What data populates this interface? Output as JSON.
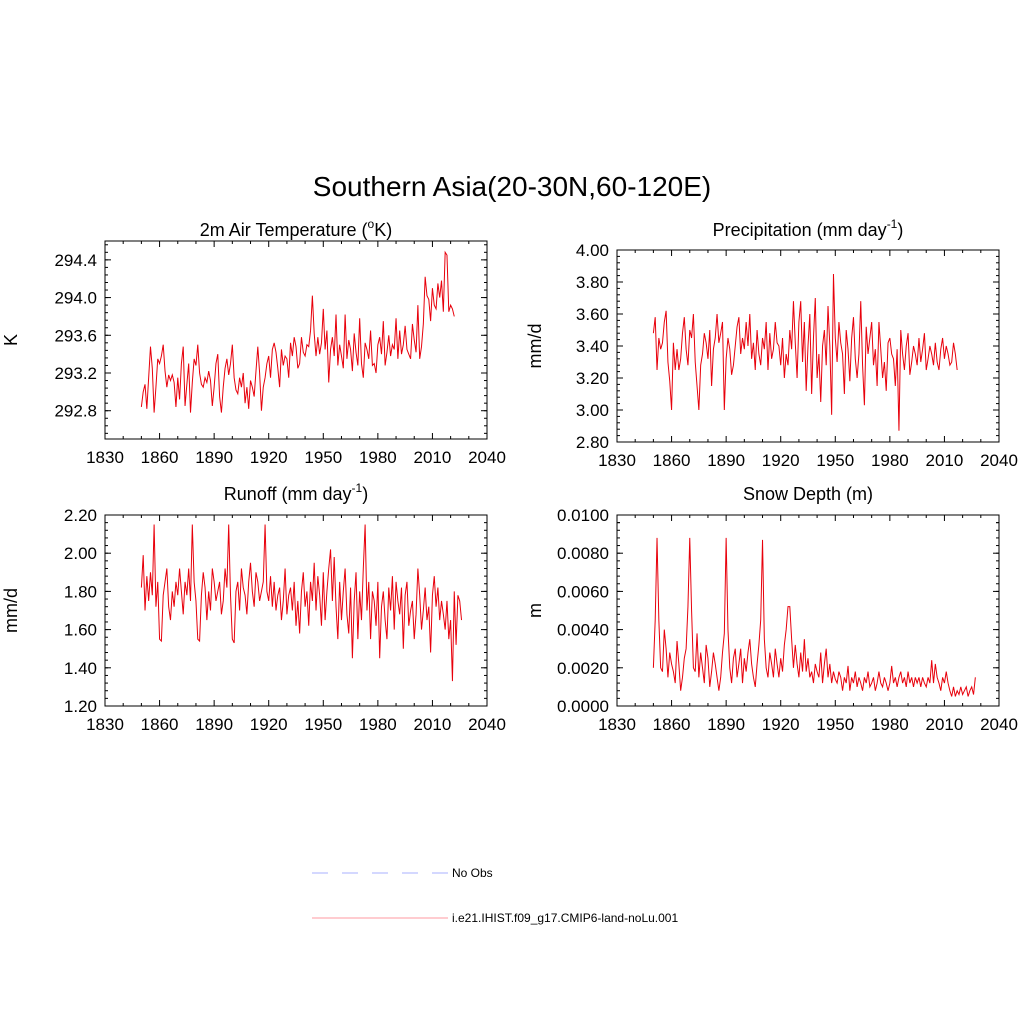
{
  "figure": {
    "title": "Southern Asia(20-30N,60-120E)"
  },
  "colors": {
    "series": "#e8000b",
    "obs": "#aab0ff",
    "axis": "#000000"
  },
  "legend": {
    "items": [
      {
        "label": "No Obs",
        "style": "dashed",
        "color": "#aab0ff"
      },
      {
        "label": "i.e21.IHIST.f09_g17.CMIP6-land-noLu.001",
        "style": "solid",
        "color": "#ff9aa0"
      }
    ]
  },
  "chart_data": [
    {
      "type": "line",
      "title": "2m Air Temperature (",
      "title_sup": "o",
      "title_post": "K)",
      "xlabel": "",
      "ylabel": "K",
      "xlim": [
        1830,
        2040
      ],
      "ylim": [
        292.5,
        294.6
      ],
      "x_ticks": [
        1830,
        1860,
        1890,
        1920,
        1950,
        1980,
        2010,
        2040
      ],
      "y_ticks": [
        292.8,
        293.2,
        293.6,
        294.0,
        294.4
      ],
      "y_tick_labels": [
        "292.8",
        "293.2",
        "293.6",
        "294.0",
        "294.4"
      ],
      "grid": false,
      "series": [
        {
          "x_start": 1850,
          "x_step": 1,
          "values": [
            292.84,
            293.0,
            293.08,
            292.82,
            293.15,
            293.48,
            293.25,
            292.78,
            293.05,
            293.35,
            293.3,
            293.38,
            293.5,
            293.22,
            293.05,
            293.18,
            293.12,
            293.18,
            293.1,
            292.84,
            293.15,
            292.92,
            293.3,
            293.48,
            292.85,
            293.08,
            293.3,
            292.78,
            293.1,
            293.35,
            293.28,
            293.5,
            293.2,
            293.08,
            293.05,
            293.15,
            293.1,
            293.22,
            293.12,
            292.85,
            293.05,
            293.3,
            293.4,
            292.95,
            292.78,
            293.05,
            293.25,
            293.35,
            293.18,
            293.3,
            293.5,
            293.15,
            293.02,
            292.98,
            293.15,
            293.05,
            293.2,
            292.88,
            293.05,
            292.82,
            293.12,
            293.05,
            292.95,
            293.22,
            293.48,
            293.2,
            292.8,
            293.05,
            293.15,
            293.3,
            293.38,
            293.15,
            293.45,
            293.52,
            293.42,
            293.25,
            293.05,
            293.45,
            293.28,
            293.38,
            293.35,
            293.15,
            293.52,
            293.38,
            293.58,
            293.48,
            293.25,
            293.3,
            293.58,
            293.42,
            293.38,
            293.5,
            293.48,
            293.65,
            294.02,
            293.62,
            293.38,
            293.58,
            293.4,
            293.52,
            293.88,
            293.45,
            293.65,
            293.1,
            293.45,
            293.58,
            293.38,
            293.82,
            293.28,
            293.5,
            293.38,
            293.25,
            293.82,
            293.35,
            293.55,
            293.45,
            293.22,
            293.62,
            293.42,
            293.28,
            293.78,
            293.3,
            293.15,
            293.52,
            293.45,
            293.35,
            293.65,
            293.28,
            293.3,
            293.2,
            293.5,
            293.58,
            293.4,
            293.75,
            293.28,
            293.42,
            293.6,
            293.38,
            293.5,
            293.45,
            293.78,
            293.35,
            293.65,
            293.4,
            293.5,
            293.7,
            293.45,
            293.4,
            293.35,
            293.72,
            293.55,
            293.42,
            293.92,
            293.35,
            293.48,
            293.72,
            294.22,
            294.02,
            293.98,
            293.75,
            294.1,
            293.92,
            293.88,
            294.15,
            294.0,
            294.18,
            293.85,
            294.48,
            294.45,
            293.85,
            293.92,
            293.88,
            293.8
          ]
        }
      ]
    },
    {
      "type": "line",
      "title": "Precipitation (mm day",
      "title_sup": "-1",
      "title_post": ")",
      "xlabel": "",
      "ylabel": "mm/d",
      "xlim": [
        1830,
        2040
      ],
      "ylim": [
        2.8,
        4.0
      ],
      "x_ticks": [
        1830,
        1860,
        1890,
        1920,
        1950,
        1980,
        2010,
        2040
      ],
      "y_ticks": [
        2.8,
        3.0,
        3.2,
        3.4,
        3.6,
        3.8,
        4.0
      ],
      "y_tick_labels": [
        "2.80",
        "3.00",
        "3.20",
        "3.40",
        "3.60",
        "3.80",
        "4.00"
      ],
      "grid": false,
      "series": [
        {
          "x_start": 1850,
          "x_step": 1,
          "values": [
            3.48,
            3.58,
            3.25,
            3.45,
            3.38,
            3.42,
            3.55,
            3.62,
            3.3,
            3.18,
            3.0,
            3.42,
            3.25,
            3.38,
            3.25,
            3.32,
            3.48,
            3.58,
            3.38,
            3.28,
            3.5,
            3.45,
            3.6,
            3.3,
            3.15,
            3.0,
            3.28,
            3.35,
            3.48,
            3.42,
            3.32,
            3.5,
            3.15,
            3.38,
            3.45,
            3.6,
            3.42,
            3.48,
            3.55,
            3.0,
            3.32,
            3.45,
            3.38,
            3.22,
            3.28,
            3.4,
            3.52,
            3.58,
            3.35,
            3.45,
            3.38,
            3.55,
            3.4,
            3.6,
            3.32,
            3.42,
            3.25,
            3.5,
            3.35,
            3.28,
            3.45,
            3.38,
            3.55,
            3.25,
            3.48,
            3.32,
            3.38,
            3.55,
            3.42,
            3.4,
            3.28,
            3.45,
            3.2,
            3.35,
            3.28,
            3.5,
            3.38,
            3.68,
            3.42,
            3.2,
            3.55,
            3.68,
            3.3,
            3.55,
            3.12,
            3.4,
            3.6,
            3.1,
            3.45,
            3.7,
            3.2,
            3.35,
            3.05,
            3.4,
            3.5,
            3.28,
            3.65,
            3.4,
            2.97,
            3.85,
            3.45,
            3.3,
            3.55,
            3.42,
            3.35,
            3.1,
            3.5,
            3.38,
            3.18,
            3.45,
            3.58,
            3.32,
            3.2,
            3.35,
            3.68,
            3.28,
            3.03,
            3.52,
            3.35,
            3.45,
            3.55,
            3.28,
            3.38,
            3.15,
            3.55,
            3.38,
            3.2,
            3.3,
            3.12,
            3.42,
            3.45,
            3.35,
            3.32,
            3.15,
            3.38,
            2.87,
            3.5,
            3.35,
            3.25,
            3.4,
            3.48,
            3.22,
            3.3,
            3.4,
            3.35,
            3.28,
            3.45,
            3.3,
            3.38,
            3.48,
            3.25,
            3.32,
            3.4,
            3.35,
            3.28,
            3.42,
            3.3,
            3.25,
            3.38,
            3.45,
            3.32,
            3.4,
            3.35,
            3.28,
            3.3,
            3.42,
            3.35,
            3.25
          ]
        }
      ]
    },
    {
      "type": "line",
      "title": "Runoff (mm day",
      "title_sup": "-1",
      "title_post": ")",
      "xlabel": "",
      "ylabel": "mm/d",
      "xlim": [
        1830,
        2040
      ],
      "ylim": [
        1.2,
        2.2
      ],
      "x_ticks": [
        1830,
        1860,
        1890,
        1920,
        1950,
        1980,
        2010,
        2040
      ],
      "y_ticks": [
        1.2,
        1.4,
        1.6,
        1.8,
        2.0,
        2.2
      ],
      "y_tick_labels": [
        "1.20",
        "1.40",
        "1.60",
        "1.80",
        "2.00",
        "2.20"
      ],
      "grid": false,
      "series": [
        {
          "x_start": 1850,
          "x_step": 1,
          "values": [
            1.82,
            1.99,
            1.7,
            1.88,
            1.75,
            1.9,
            1.78,
            2.15,
            1.72,
            1.85,
            1.55,
            1.54,
            1.78,
            1.85,
            1.92,
            1.72,
            1.65,
            1.8,
            1.72,
            1.85,
            1.78,
            1.92,
            1.8,
            1.68,
            1.85,
            1.78,
            1.92,
            1.75,
            2.15,
            1.85,
            1.75,
            1.55,
            1.54,
            1.78,
            1.9,
            1.82,
            1.65,
            1.8,
            1.7,
            1.92,
            1.85,
            1.75,
            1.8,
            1.85,
            1.68,
            1.75,
            1.92,
            1.82,
            2.15,
            1.78,
            1.55,
            1.53,
            1.8,
            1.85,
            1.7,
            1.92,
            1.82,
            1.78,
            1.68,
            1.85,
            1.95,
            1.8,
            1.72,
            1.9,
            1.85,
            1.75,
            1.8,
            1.85,
            2.15,
            1.8,
            1.75,
            1.88,
            1.72,
            1.85,
            1.7,
            1.78,
            1.82,
            1.65,
            1.75,
            1.92,
            1.68,
            1.78,
            1.82,
            1.7,
            1.85,
            1.62,
            1.75,
            1.58,
            1.8,
            1.9,
            1.72,
            1.8,
            1.62,
            1.85,
            1.75,
            1.95,
            1.7,
            1.88,
            1.78,
            1.62,
            1.9,
            1.65,
            1.8,
            1.92,
            2.02,
            1.75,
            1.98,
            1.72,
            1.55,
            1.85,
            1.65,
            1.8,
            1.92,
            1.68,
            1.58,
            1.82,
            1.45,
            1.75,
            1.9,
            1.55,
            1.8,
            1.65,
            1.92,
            2.15,
            1.7,
            1.85,
            1.55,
            1.8,
            1.75,
            1.62,
            1.85,
            1.45,
            1.72,
            1.8,
            1.65,
            1.55,
            1.82,
            1.7,
            1.88,
            1.6,
            1.85,
            1.75,
            1.68,
            1.82,
            1.5,
            1.78,
            1.85,
            1.62,
            1.7,
            1.75,
            1.55,
            1.68,
            1.92,
            1.78,
            1.6,
            1.7,
            1.82,
            1.65,
            1.72,
            1.48,
            1.78,
            1.88,
            1.72,
            1.82,
            1.65,
            1.75,
            1.68,
            1.6,
            1.75,
            1.55,
            1.65,
            1.33,
            1.8,
            1.52,
            1.78,
            1.75,
            1.65
          ]
        }
      ]
    },
    {
      "type": "line",
      "title": "Snow Depth (m)",
      "title_sup": "",
      "title_post": "",
      "xlabel": "",
      "ylabel": "m",
      "xlim": [
        1830,
        2040
      ],
      "ylim": [
        0.0,
        0.01
      ],
      "x_ticks": [
        1830,
        1860,
        1890,
        1920,
        1950,
        1980,
        2010,
        2040
      ],
      "y_ticks": [
        0.0,
        0.002,
        0.004,
        0.006,
        0.008,
        0.01
      ],
      "y_tick_labels": [
        "0.0000",
        "0.0020",
        "0.0040",
        "0.0060",
        "0.0080",
        "0.0100"
      ],
      "grid": false,
      "series": [
        {
          "x_start": 1850,
          "x_step": 1,
          "values": [
            0.002,
            0.0045,
            0.0088,
            0.0045,
            0.002,
            0.0018,
            0.004,
            0.003,
            0.0015,
            0.0028,
            0.0022,
            0.0018,
            0.0012,
            0.0034,
            0.0022,
            0.0008,
            0.0015,
            0.0025,
            0.003,
            0.0052,
            0.0088,
            0.005,
            0.002,
            0.0018,
            0.0038,
            0.0015,
            0.0028,
            0.002,
            0.0012,
            0.0032,
            0.0025,
            0.001,
            0.0018,
            0.0028,
            0.0022,
            0.0015,
            0.0008,
            0.0015,
            0.0028,
            0.0038,
            0.0088,
            0.004,
            0.002,
            0.0012,
            0.0025,
            0.003,
            0.0015,
            0.0022,
            0.003,
            0.0012,
            0.0025,
            0.0018,
            0.0028,
            0.0035,
            0.0022,
            0.0015,
            0.001,
            0.0022,
            0.0032,
            0.0045,
            0.0087,
            0.0035,
            0.002,
            0.0015,
            0.0028,
            0.0022,
            0.0015,
            0.003,
            0.0022,
            0.0015,
            0.0025,
            0.0018,
            0.0032,
            0.004,
            0.0052,
            0.0052,
            0.0035,
            0.002,
            0.0032,
            0.0022,
            0.0015,
            0.0028,
            0.0018,
            0.0035,
            0.0018,
            0.0025,
            0.0015,
            0.0018,
            0.0012,
            0.0022,
            0.0018,
            0.0015,
            0.0028,
            0.0012,
            0.0022,
            0.003,
            0.0015,
            0.0022,
            0.0012,
            0.0018,
            0.0014,
            0.0012,
            0.0018,
            0.0015,
            0.0008,
            0.0015,
            0.0012,
            0.0021,
            0.0008,
            0.0015,
            0.0012,
            0.0018,
            0.001,
            0.0015,
            0.0012,
            0.0008,
            0.0015,
            0.0012,
            0.0018,
            0.001,
            0.0012,
            0.0015,
            0.0008,
            0.0012,
            0.0018,
            0.0012,
            0.001,
            0.0015,
            0.0012,
            0.0008,
            0.0012,
            0.0021,
            0.0012,
            0.0015,
            0.001,
            0.0015,
            0.0018,
            0.0012,
            0.0015,
            0.001,
            0.0018,
            0.0012,
            0.0015,
            0.001,
            0.0015,
            0.0012,
            0.0015,
            0.001,
            0.0015,
            0.0012,
            0.001,
            0.0015,
            0.0012,
            0.0024,
            0.0012,
            0.0022,
            0.0015,
            0.0012,
            0.0008,
            0.0015,
            0.0012,
            0.0018,
            0.0012,
            0.0008,
            0.0005,
            0.001,
            0.0005,
            0.0008,
            0.0006,
            0.001,
            0.0006,
            0.0008,
            0.001,
            0.0005,
            0.0008,
            0.001,
            0.0006,
            0.0015
          ]
        }
      ]
    }
  ]
}
